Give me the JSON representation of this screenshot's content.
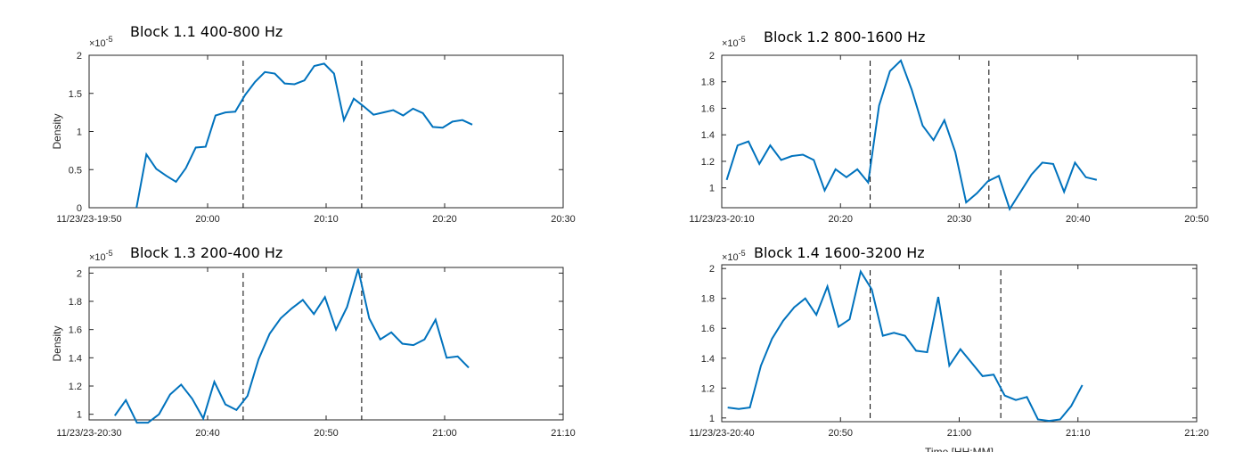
{
  "chart_data": [
    {
      "type": "line",
      "title": "Block 1.1 400-800 Hz",
      "ylabel": "Density",
      "y_scale_base": "×10",
      "y_scale_power": -5,
      "xlim": [
        "19:50",
        "20:30"
      ],
      "xticks": [
        {
          "value": "19:50",
          "label": "11/23/23-19:50"
        },
        "20:00",
        "20:10",
        "20:20",
        "20:30"
      ],
      "ylim": [
        0,
        2
      ],
      "yticks": [
        0,
        0.5,
        1,
        1.5,
        2
      ],
      "vlines": [
        "20:03",
        "20:13"
      ],
      "x": [
        "19:54:00",
        "19:54:50",
        "19:55:40",
        "19:56:30",
        "19:57:20",
        "19:58:10",
        "19:59:00",
        "19:59:50",
        "20:00:40",
        "20:01:30",
        "20:02:20",
        "20:03:10",
        "20:04:00",
        "20:04:50",
        "20:05:40",
        "20:06:30",
        "20:07:20",
        "20:08:10",
        "20:09:00",
        "20:09:50",
        "20:10:40",
        "20:11:30",
        "20:12:20",
        "20:13:10",
        "20:14:00",
        "20:14:50",
        "20:15:40",
        "20:16:30",
        "20:17:20",
        "20:18:10",
        "20:19:00",
        "20:19:50",
        "20:20:40",
        "20:21:30",
        "20:22:20"
      ],
      "series": [
        {
          "color": "#0072bd",
          "values": [
            0,
            0.7,
            0.51,
            0.42,
            0.34,
            0.52,
            0.79,
            0.8,
            1.21,
            1.25,
            1.26,
            1.48,
            1.65,
            1.78,
            1.76,
            1.63,
            1.62,
            1.67,
            1.86,
            1.89,
            1.76,
            1.15,
            1.43,
            1.33,
            1.22,
            1.25,
            1.28,
            1.21,
            1.3,
            1.24,
            1.06,
            1.05,
            1.13,
            1.15,
            1.09
          ]
        }
      ]
    },
    {
      "type": "line",
      "title": "Block 1.2 800-1600 Hz",
      "y_scale_base": "×10",
      "y_scale_power": -5,
      "xlim": [
        "20:10",
        "20:50"
      ],
      "xticks": [
        {
          "value": "20:10",
          "label": "11/23/23-20:10"
        },
        "20:20",
        "20:30",
        "20:40",
        "20:50"
      ],
      "ylim": [
        0.85,
        2
      ],
      "yticks": [
        1,
        1.2,
        1.4,
        1.6,
        1.8,
        2
      ],
      "vlines": [
        "20:22:30",
        "20:32:30"
      ],
      "x": [
        "20:10:25",
        "20:11:20",
        "20:12:15",
        "20:13:10",
        "20:14:05",
        "20:15:00",
        "20:15:55",
        "20:16:50",
        "20:17:45",
        "20:18:40",
        "20:19:35",
        "20:20:30",
        "20:21:25",
        "20:22:20",
        "20:23:15",
        "20:24:10",
        "20:25:05",
        "20:26:00",
        "20:26:55",
        "20:27:50",
        "20:28:45",
        "20:29:40",
        "20:30:35",
        "20:31:30",
        "20:32:25",
        "20:33:20",
        "20:34:15",
        "20:35:10",
        "20:36:05",
        "20:37:00",
        "20:37:55",
        "20:38:50",
        "20:39:45",
        "20:40:40",
        "20:41:35"
      ],
      "series": [
        {
          "color": "#0072bd",
          "values": [
            1.06,
            1.32,
            1.35,
            1.18,
            1.32,
            1.21,
            1.24,
            1.25,
            1.21,
            0.98,
            1.14,
            1.08,
            1.14,
            1.04,
            1.62,
            1.88,
            1.96,
            1.74,
            1.47,
            1.36,
            1.51,
            1.27,
            0.89,
            0.96,
            1.05,
            1.09,
            0.84,
            0.97,
            1.1,
            1.19,
            1.18,
            0.97,
            1.19,
            1.08,
            1.06
          ]
        }
      ]
    },
    {
      "type": "line",
      "title": "Block 1.3 200-400 Hz",
      "ylabel": "Density",
      "y_scale_base": "×10",
      "y_scale_power": -5,
      "xlim": [
        "20:30",
        "21:10"
      ],
      "xticks": [
        {
          "value": "20:30",
          "label": "11/23/23-20:30"
        },
        "20:40",
        "20:50",
        "21:00",
        "21:10"
      ],
      "ylim": [
        0.96,
        2.04
      ],
      "yticks": [
        1,
        1.2,
        1.4,
        1.6,
        1.8,
        2
      ],
      "vlines": [
        "20:43",
        "20:53"
      ],
      "x": [
        "20:32:10",
        "20:33:06",
        "20:34:02",
        "20:34:58",
        "20:35:54",
        "20:36:50",
        "20:37:46",
        "20:38:42",
        "20:39:38",
        "20:40:34",
        "20:41:30",
        "20:42:26",
        "20:43:22",
        "20:44:18",
        "20:45:14",
        "20:46:10",
        "20:47:06",
        "20:48:02",
        "20:48:58",
        "20:49:54",
        "20:50:50",
        "20:51:46",
        "20:52:42",
        "20:53:38",
        "20:54:34",
        "20:55:30",
        "20:56:26",
        "20:57:22",
        "20:58:18",
        "20:59:14",
        "21:00:10",
        "21:01:06",
        "21:02:02"
      ],
      "series": [
        {
          "color": "#0072bd",
          "values": [
            0.99,
            1.1,
            0.94,
            0.94,
            1.0,
            1.14,
            1.21,
            1.11,
            0.97,
            1.23,
            1.07,
            1.03,
            1.13,
            1.39,
            1.57,
            1.68,
            1.75,
            1.81,
            1.71,
            1.83,
            1.6,
            1.76,
            2.03,
            1.68,
            1.53,
            1.58,
            1.5,
            1.49,
            1.53,
            1.67,
            1.4,
            1.41,
            1.33
          ]
        }
      ]
    },
    {
      "type": "line",
      "title": "Block 1.4 1600-3200 Hz",
      "xlabel": "Time [HH:MM]",
      "y_scale_base": "×10",
      "y_scale_power": -5,
      "xlim": [
        "20:40",
        "21:20"
      ],
      "xticks": [
        {
          "value": "20:40",
          "label": "11/23/23-20:40"
        },
        "20:50",
        "21:00",
        "21:10",
        "21:20"
      ],
      "ylim": [
        0.975,
        2.025
      ],
      "yticks": [
        1,
        1.2,
        1.4,
        1.6,
        1.8,
        2
      ],
      "vlines": [
        "20:52:30",
        "21:03:30"
      ],
      "x": [
        "20:40:30",
        "20:41:26",
        "20:42:22",
        "20:43:18",
        "20:44:14",
        "20:45:10",
        "20:46:06",
        "20:47:02",
        "20:47:58",
        "20:48:54",
        "20:49:50",
        "20:50:46",
        "20:51:42",
        "20:52:38",
        "20:53:34",
        "20:54:30",
        "20:55:26",
        "20:56:22",
        "20:57:18",
        "20:58:14",
        "20:59:10",
        "21:00:06",
        "21:01:02",
        "21:01:58",
        "21:02:54",
        "21:03:50",
        "21:04:46",
        "21:05:42",
        "21:06:38",
        "21:07:34",
        "21:08:30",
        "21:09:26",
        "21:10:22"
      ],
      "series": [
        {
          "color": "#0072bd",
          "values": [
            1.07,
            1.06,
            1.07,
            1.35,
            1.53,
            1.65,
            1.74,
            1.8,
            1.69,
            1.88,
            1.61,
            1.66,
            1.98,
            1.86,
            1.55,
            1.57,
            1.55,
            1.45,
            1.44,
            1.81,
            1.35,
            1.46,
            1.37,
            1.28,
            1.29,
            1.15,
            1.12,
            1.14,
            0.99,
            0.98,
            0.99,
            1.08,
            1.22
          ]
        }
      ]
    }
  ]
}
